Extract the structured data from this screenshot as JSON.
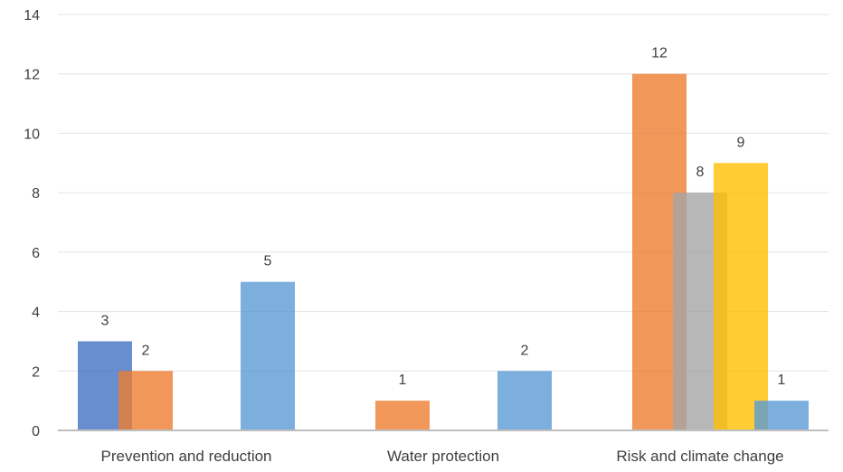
{
  "chart_data": {
    "type": "bar",
    "title": "",
    "xlabel": "",
    "ylabel": "",
    "ylim": [
      0,
      14
    ],
    "yticks": [
      0,
      2,
      4,
      6,
      8,
      10,
      12,
      14
    ],
    "grid": true,
    "legend": "none",
    "categories": [
      "Prevention and reduction",
      "Water protection",
      "Risk and climate change"
    ],
    "series": [
      {
        "color": "#4472c4",
        "values": [
          3,
          null,
          null
        ]
      },
      {
        "color": "#ed7d31",
        "values": [
          2,
          1,
          12
        ]
      },
      {
        "color": "#a5a5a5",
        "values": [
          null,
          null,
          8
        ]
      },
      {
        "color": "#ffc000",
        "values": [
          null,
          null,
          9
        ]
      },
      {
        "color": "#5b9bd5",
        "values": [
          5,
          2,
          1
        ]
      }
    ]
  }
}
